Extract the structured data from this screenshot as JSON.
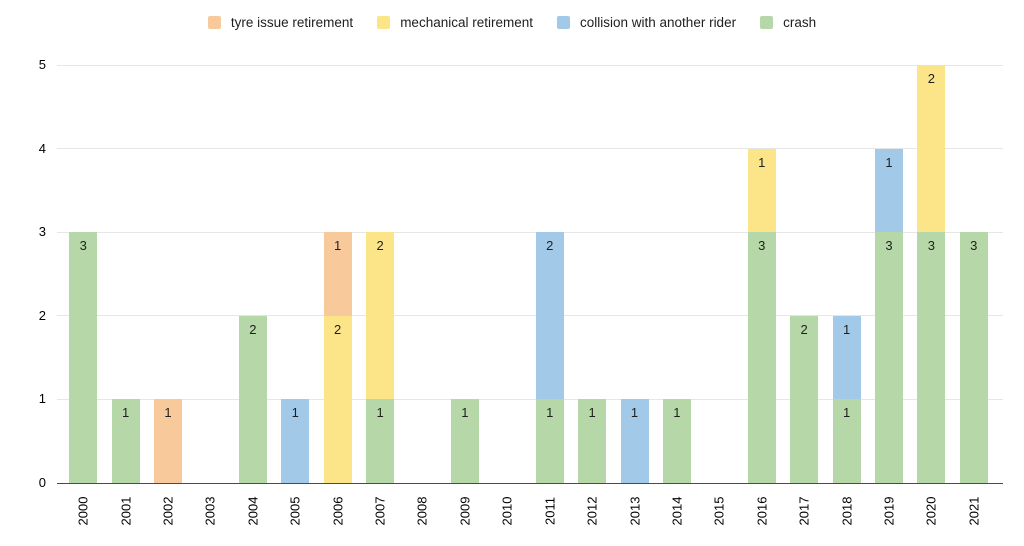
{
  "chart_data": {
    "type": "bar",
    "stacked": true,
    "title": "",
    "xlabel": "",
    "ylabel": "",
    "legend_position": "top",
    "grid": true,
    "ylim": [
      0,
      5
    ],
    "yticks": [
      0,
      1,
      2,
      3,
      4,
      5
    ],
    "categories": [
      "2000",
      "2001",
      "2002",
      "2003",
      "2004",
      "2005",
      "2006",
      "2007",
      "2008",
      "2009",
      "2010",
      "2011",
      "2012",
      "2013",
      "2014",
      "2015",
      "2016",
      "2017",
      "2018",
      "2019",
      "2020",
      "2021"
    ],
    "series": [
      {
        "name": "tyre issue retirement",
        "color": "#f8ca9b",
        "values": [
          0,
          0,
          1,
          0,
          0,
          0,
          1,
          0,
          0,
          0,
          0,
          0,
          0,
          0,
          0,
          0,
          0,
          0,
          0,
          0,
          0,
          0
        ]
      },
      {
        "name": "mechanical retirement",
        "color": "#fce488",
        "values": [
          0,
          0,
          0,
          0,
          0,
          0,
          2,
          2,
          0,
          0,
          0,
          0,
          0,
          0,
          0,
          0,
          1,
          0,
          0,
          0,
          2,
          0
        ]
      },
      {
        "name": "collision with another rider",
        "color": "#a3c9e8",
        "values": [
          0,
          0,
          0,
          0,
          0,
          1,
          0,
          0,
          0,
          0,
          0,
          2,
          0,
          1,
          0,
          0,
          0,
          0,
          1,
          1,
          0,
          0
        ]
      },
      {
        "name": "crash",
        "color": "#b6d7a8",
        "values": [
          3,
          1,
          0,
          0,
          2,
          0,
          0,
          1,
          0,
          1,
          0,
          1,
          1,
          0,
          1,
          0,
          3,
          2,
          1,
          3,
          3,
          3
        ]
      }
    ],
    "stack_order_bottom_to_top": [
      3,
      2,
      1,
      0
    ],
    "bar_value_labels": "shown at top of each non-zero segment"
  },
  "style_colors": {
    "gridline": "#e6e6e6",
    "baseline": "#4a4a4a",
    "label_text": "#1f1f1f"
  }
}
